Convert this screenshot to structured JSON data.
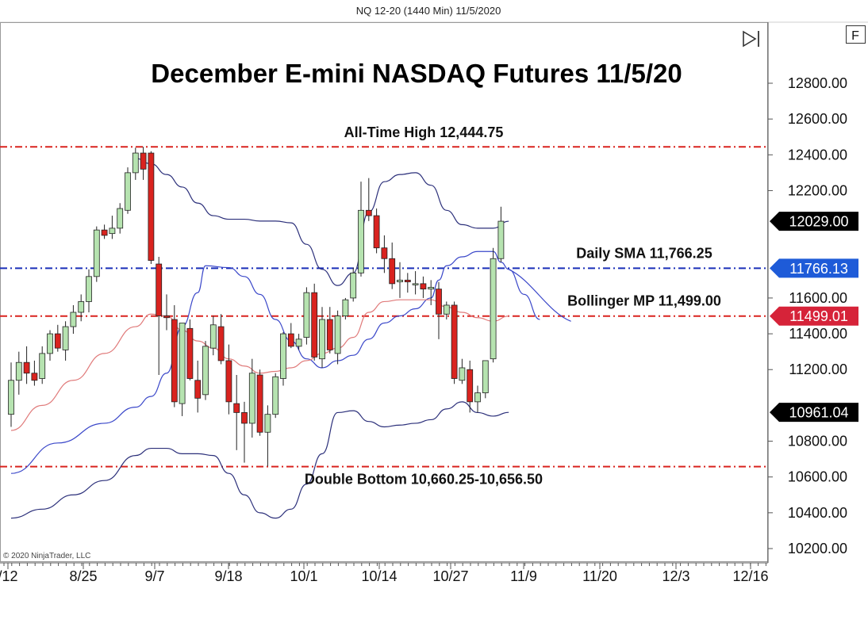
{
  "header": "NQ 12-20 (1440 Min)  11/5/2020",
  "copyright": "© 2020 NinjaTrader, LLC",
  "f_button": "F",
  "colors": {
    "bull_candle": "#b6e3b0",
    "bear_candle": "#d9231f",
    "resistance_line": "#d9231f",
    "sma_line": "#1a2fb8",
    "upper_band": "#2b2f7a",
    "mid_band": "#e07a7a",
    "last_price_bg": "#000000",
    "sma_bg": "#1e5bd8",
    "mp_bg": "#d62339"
  },
  "chart_data": {
    "type": "candlestick",
    "title": "December E-mini NASDAQ Futures 11/5/20",
    "y_range": [
      10100,
      12950
    ],
    "y_ticks": [
      "12800.00",
      "12600.00",
      "12400.00",
      "12200.00",
      "11600.00",
      "11400.00",
      "11200.00",
      "10800.00",
      "10600.00",
      "10400.00",
      "10200.00"
    ],
    "x_ticks": [
      "/12",
      "8/25",
      "9/7",
      "9/18",
      "10/1",
      "10/14",
      "10/27",
      "11/9",
      "11/20",
      "12/3",
      "12/16"
    ],
    "horizontal_lines": [
      {
        "label": "All-Time High 12,444.75",
        "value": 12444.75,
        "style": "dashdot",
        "color": "#d9231f"
      },
      {
        "label": "Daily SMA 11,766.25",
        "value": 11766.25,
        "style": "dashdot",
        "color": "#1a2fb8"
      },
      {
        "label": "Bollinger MP 11,499.00",
        "value": 11499.0,
        "style": "dashdot",
        "color": "#d9231f"
      },
      {
        "label": "Double Bottom 10,660.25-10,656.50",
        "value": 10658.0,
        "style": "dashdot",
        "color": "#d9231f"
      }
    ],
    "price_labels": [
      {
        "text": "12029.00",
        "value": 12029.0,
        "kind": "last"
      },
      {
        "text": "11766.13",
        "value": 11766.13,
        "kind": "sma"
      },
      {
        "text": "11499.01",
        "value": 11499.01,
        "kind": "mp"
      },
      {
        "text": "10961.04",
        "value": 10961.04,
        "kind": "last"
      }
    ],
    "candles": [
      {
        "o": 10950,
        "h": 11240,
        "l": 10880,
        "c": 11140
      },
      {
        "o": 11140,
        "h": 11300,
        "l": 11060,
        "c": 11240
      },
      {
        "o": 11240,
        "h": 11330,
        "l": 11120,
        "c": 11180
      },
      {
        "o": 11180,
        "h": 11250,
        "l": 11110,
        "c": 11140
      },
      {
        "o": 11150,
        "h": 11330,
        "l": 11120,
        "c": 11290
      },
      {
        "o": 11290,
        "h": 11420,
        "l": 11250,
        "c": 11400
      },
      {
        "o": 11400,
        "h": 11450,
        "l": 11300,
        "c": 11320
      },
      {
        "o": 11310,
        "h": 11470,
        "l": 11250,
        "c": 11440
      },
      {
        "o": 11440,
        "h": 11560,
        "l": 11400,
        "c": 11520
      },
      {
        "o": 11520,
        "h": 11620,
        "l": 11470,
        "c": 11580
      },
      {
        "o": 11580,
        "h": 11760,
        "l": 11520,
        "c": 11720
      },
      {
        "o": 11720,
        "h": 12000,
        "l": 11690,
        "c": 11980
      },
      {
        "o": 11980,
        "h": 12010,
        "l": 11930,
        "c": 11950
      },
      {
        "o": 11960,
        "h": 12060,
        "l": 11930,
        "c": 11990
      },
      {
        "o": 11990,
        "h": 12130,
        "l": 11960,
        "c": 12100
      },
      {
        "o": 12090,
        "h": 12330,
        "l": 12070,
        "c": 12300
      },
      {
        "o": 12300,
        "h": 12440,
        "l": 12260,
        "c": 12410
      },
      {
        "o": 12410,
        "h": 12444.75,
        "l": 12260,
        "c": 12320
      },
      {
        "o": 12410,
        "h": 12420,
        "l": 11790,
        "c": 11810
      },
      {
        "o": 11790,
        "h": 11830,
        "l": 11170,
        "c": 11500
      },
      {
        "o": 11500,
        "h": 11620,
        "l": 11420,
        "c": 11490
      },
      {
        "o": 11480,
        "h": 11560,
        "l": 10990,
        "c": 11020
      },
      {
        "o": 11010,
        "h": 11460,
        "l": 10940,
        "c": 11460
      },
      {
        "o": 11430,
        "h": 11480,
        "l": 11140,
        "c": 11150
      },
      {
        "o": 11140,
        "h": 11250,
        "l": 10960,
        "c": 11040
      },
      {
        "o": 11060,
        "h": 11360,
        "l": 11030,
        "c": 11330
      },
      {
        "o": 11320,
        "h": 11500,
        "l": 11280,
        "c": 11450
      },
      {
        "o": 11440,
        "h": 11510,
        "l": 11230,
        "c": 11250
      },
      {
        "o": 11250,
        "h": 11340,
        "l": 10950,
        "c": 11020
      },
      {
        "o": 11010,
        "h": 11170,
        "l": 10750,
        "c": 10960
      },
      {
        "o": 10960,
        "h": 11020,
        "l": 10680,
        "c": 10900
      },
      {
        "o": 10900,
        "h": 11260,
        "l": 10820,
        "c": 11180
      },
      {
        "o": 11170,
        "h": 11200,
        "l": 10830,
        "c": 10850
      },
      {
        "o": 10850,
        "h": 11000,
        "l": 10660.25,
        "c": 10950
      },
      {
        "o": 10950,
        "h": 11180,
        "l": 10930,
        "c": 11160
      },
      {
        "o": 11150,
        "h": 11410,
        "l": 11110,
        "c": 11400
      },
      {
        "o": 11400,
        "h": 11460,
        "l": 11320,
        "c": 11330
      },
      {
        "o": 11330,
        "h": 11400,
        "l": 11310,
        "c": 11370
      },
      {
        "o": 11380,
        "h": 11660,
        "l": 11340,
        "c": 11630
      },
      {
        "o": 11630,
        "h": 11680,
        "l": 11250,
        "c": 11270
      },
      {
        "o": 11260,
        "h": 11550,
        "l": 11210,
        "c": 11480
      },
      {
        "o": 11480,
        "h": 11550,
        "l": 11290,
        "c": 11310
      },
      {
        "o": 11290,
        "h": 11530,
        "l": 11230,
        "c": 11500
      },
      {
        "o": 11500,
        "h": 11600,
        "l": 11480,
        "c": 11590
      },
      {
        "o": 11600,
        "h": 11770,
        "l": 11580,
        "c": 11740
      },
      {
        "o": 11740,
        "h": 12250,
        "l": 11720,
        "c": 12090
      },
      {
        "o": 12090,
        "h": 12270,
        "l": 12030,
        "c": 12060
      },
      {
        "o": 12060,
        "h": 12100,
        "l": 11850,
        "c": 11880
      },
      {
        "o": 11880,
        "h": 11950,
        "l": 11740,
        "c": 11820
      },
      {
        "o": 11820,
        "h": 11910,
        "l": 11650,
        "c": 11680
      },
      {
        "o": 11690,
        "h": 11800,
        "l": 11600,
        "c": 11700
      },
      {
        "o": 11700,
        "h": 11740,
        "l": 11630,
        "c": 11690
      },
      {
        "o": 11680,
        "h": 11750,
        "l": 11620,
        "c": 11680
      },
      {
        "o": 11680,
        "h": 11720,
        "l": 11600,
        "c": 11650
      },
      {
        "o": 11650,
        "h": 11700,
        "l": 11560,
        "c": 11660
      },
      {
        "o": 11650,
        "h": 11690,
        "l": 11370,
        "c": 11510
      },
      {
        "o": 11510,
        "h": 11580,
        "l": 11480,
        "c": 11560
      },
      {
        "o": 11560,
        "h": 11580,
        "l": 11120,
        "c": 11150
      },
      {
        "o": 11140,
        "h": 11260,
        "l": 11120,
        "c": 11210
      },
      {
        "o": 11200,
        "h": 11250,
        "l": 10960,
        "c": 11020
      },
      {
        "o": 11020,
        "h": 11110,
        "l": 10960,
        "c": 11070
      },
      {
        "o": 11070,
        "h": 11250,
        "l": 11040,
        "c": 11250
      },
      {
        "o": 11260,
        "h": 11880,
        "l": 11240,
        "c": 11820
      },
      {
        "o": 11820,
        "h": 12110,
        "l": 11800,
        "c": 12029
      }
    ],
    "bands": {
      "upper": [
        [
          0,
          10620
        ],
        [
          6,
          10790
        ],
        [
          12,
          10900
        ],
        [
          16,
          10990
        ],
        [
          18,
          11050
        ],
        [
          20,
          11180
        ],
        [
          22,
          11440
        ],
        [
          24,
          11630
        ],
        [
          25,
          11780
        ],
        [
          28,
          11770
        ],
        [
          30,
          11720
        ],
        [
          32,
          11620
        ],
        [
          34,
          11480
        ],
        [
          36,
          11360
        ],
        [
          38,
          11260
        ],
        [
          40,
          11210
        ],
        [
          42,
          11250
        ],
        [
          44,
          11280
        ],
        [
          46,
          11370
        ],
        [
          48,
          11460
        ],
        [
          50,
          11500
        ],
        [
          52,
          11540
        ],
        [
          54,
          11600
        ],
        [
          55,
          11700
        ],
        [
          56,
          11780
        ],
        [
          58,
          11830
        ],
        [
          60,
          11860
        ],
        [
          62,
          11860
        ],
        [
          63,
          11800
        ],
        [
          64,
          11760
        ],
        [
          66,
          11620
        ],
        [
          68,
          11480
        ]
      ],
      "mid": [
        [
          0,
          10860
        ],
        [
          4,
          11000
        ],
        [
          8,
          11140
        ],
        [
          12,
          11290
        ],
        [
          16,
          11440
        ],
        [
          18,
          11510
        ],
        [
          20,
          11500
        ],
        [
          22,
          11420
        ],
        [
          24,
          11360
        ],
        [
          26,
          11320
        ],
        [
          28,
          11260
        ],
        [
          30,
          11220
        ],
        [
          32,
          11180
        ],
        [
          34,
          11190
        ],
        [
          36,
          11210
        ],
        [
          38,
          11250
        ],
        [
          40,
          11290
        ],
        [
          42,
          11320
        ],
        [
          44,
          11380
        ],
        [
          46,
          11520
        ],
        [
          48,
          11580
        ],
        [
          50,
          11590
        ],
        [
          52,
          11590
        ],
        [
          54,
          11590
        ],
        [
          56,
          11550
        ],
        [
          58,
          11520
        ],
        [
          60,
          11490
        ],
        [
          62,
          11470
        ],
        [
          64,
          11499
        ]
      ],
      "outer_upper": [
        [
          16,
          12380
        ],
        [
          18,
          12350
        ],
        [
          20,
          12290
        ],
        [
          22,
          12220
        ],
        [
          24,
          12130
        ],
        [
          26,
          12060
        ],
        [
          28,
          12040
        ],
        [
          30,
          12040
        ],
        [
          32,
          12030
        ],
        [
          34,
          12030
        ],
        [
          36,
          12020
        ],
        [
          38,
          11900
        ],
        [
          40,
          11760
        ],
        [
          42,
          11670
        ],
        [
          44,
          11740
        ],
        [
          46,
          12080
        ],
        [
          48,
          12250
        ],
        [
          50,
          12290
        ],
        [
          52,
          12300
        ],
        [
          54,
          12230
        ],
        [
          56,
          12090
        ],
        [
          58,
          12010
        ],
        [
          60,
          11990
        ],
        [
          62,
          11990
        ],
        [
          64,
          12029
        ]
      ],
      "lower": [
        [
          0,
          10370
        ],
        [
          4,
          10420
        ],
        [
          8,
          10500
        ],
        [
          12,
          10580
        ],
        [
          16,
          10720
        ],
        [
          18,
          10760
        ],
        [
          20,
          10760
        ],
        [
          22,
          10730
        ],
        [
          24,
          10730
        ],
        [
          26,
          10720
        ],
        [
          28,
          10620
        ],
        [
          30,
          10500
        ],
        [
          32,
          10400
        ],
        [
          34,
          10370
        ],
        [
          36,
          10420
        ],
        [
          38,
          10560
        ],
        [
          40,
          10730
        ],
        [
          42,
          10960
        ],
        [
          44,
          10970
        ],
        [
          46,
          10910
        ],
        [
          48,
          10880
        ],
        [
          50,
          10890
        ],
        [
          52,
          10900
        ],
        [
          54,
          10920
        ],
        [
          56,
          10980
        ],
        [
          58,
          11020
        ],
        [
          60,
          10960
        ],
        [
          62,
          10940
        ],
        [
          64,
          10961
        ]
      ]
    }
  }
}
